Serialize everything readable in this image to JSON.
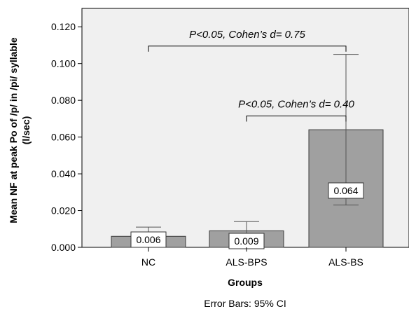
{
  "chart_data": {
    "type": "bar",
    "categories": [
      "NC",
      "ALS-BPS",
      "ALS-BS"
    ],
    "values": [
      0.006,
      0.009,
      0.064
    ],
    "data_labels": [
      "0.006",
      "0.009",
      "0.064"
    ],
    "error_bars": [
      [
        0.0,
        0.011
      ],
      [
        0.0,
        0.014
      ],
      [
        0.023,
        0.105
      ]
    ],
    "error_bar_note": "Error Bars: 95% CI",
    "xlabel": "Groups",
    "ylabel_lines": [
      "Mean NF at peak Po of /p/ in /pi/ syllable",
      "(l/sec)"
    ],
    "ylim": [
      0.0,
      0.13
    ],
    "yticks": [
      0.0,
      0.02,
      0.04,
      0.06,
      0.08,
      0.1,
      0.12
    ],
    "ytick_labels": [
      "0.000",
      "0.020",
      "0.040",
      "0.060",
      "0.080",
      "0.100",
      "0.120"
    ],
    "annotations": [
      {
        "text": "P<0.05, Cohen’s d= 0.75",
        "from": "NC",
        "to": "ALS-BS",
        "y": 0.1095
      },
      {
        "text": "P<0.05, Cohen’s d= 0.40",
        "from": "ALS-BPS",
        "to": "ALS-BS",
        "y": 0.0715
      }
    ],
    "colors": {
      "bar": "#a0a0a0",
      "plot_bg": "#f0f0f0",
      "bar_border": "#3a3a3a"
    },
    "grid": false
  }
}
